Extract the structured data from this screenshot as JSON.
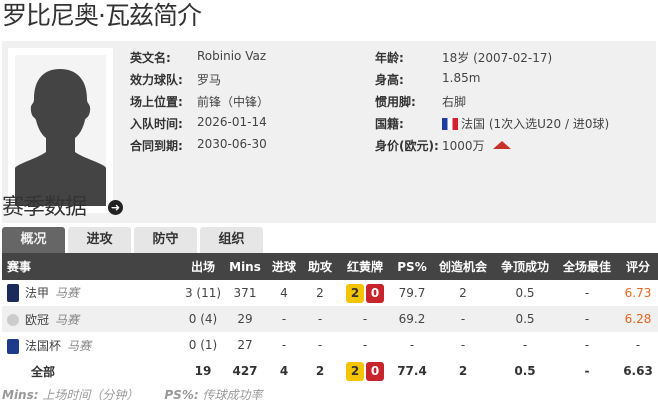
{
  "title": "罗比尼奥·瓦兹简介",
  "profile": {
    "left": [
      {
        "label": "英文名:",
        "value": "Robinio Vaz"
      },
      {
        "label": "效力球队:",
        "value": "罗马"
      },
      {
        "label": "场上位置:",
        "value": "前锋（中锋）"
      },
      {
        "label": "入队时间:",
        "value": "2026-01-14"
      },
      {
        "label": "合同到期:",
        "value": "2030-06-30"
      }
    ],
    "right": [
      {
        "label": "年龄:",
        "value": "18岁  (2007-02-17)"
      },
      {
        "label": "身高:",
        "value": "1.85m"
      },
      {
        "label": "惯用脚:",
        "value": "右脚"
      },
      {
        "label": "国籍:",
        "value": "法国 (1次入选U20 / 进0球)",
        "flag": "france-flag"
      },
      {
        "label": "身价(欧元):",
        "value": "1000万",
        "trend": "up",
        "trend_color": "#c8302a"
      }
    ]
  },
  "season": {
    "title": "赛季数据",
    "tabs": [
      "概况",
      "进攻",
      "防守",
      "组织"
    ],
    "active_tab": "概况",
    "columns": [
      "赛事",
      "出场",
      "Mins",
      "进球",
      "助攻",
      "红黄牌",
      "PS%",
      "创造机会",
      "争顶成功",
      "全场最佳",
      "评分"
    ],
    "rows": [
      {
        "comp": "法甲",
        "team": "马赛",
        "apps": "3 (11)",
        "mins": "371",
        "goals": "4",
        "assists": "2",
        "yellow": "2",
        "red": "0",
        "ps": "79.7",
        "chances": "2",
        "aerial": "0.5",
        "motm": "-",
        "rating": "6.73",
        "icon_color": "#1a2a5a"
      },
      {
        "comp": "欧冠",
        "team": "马赛",
        "apps": "0 (4)",
        "mins": "29",
        "goals": "-",
        "assists": "-",
        "cards": "-",
        "ps": "69.2",
        "chances": "-",
        "aerial": "0.5",
        "motm": "-",
        "rating": "6.28",
        "icon_color": "#bbbbbb"
      },
      {
        "comp": "法国杯",
        "team": "马赛",
        "apps": "0 (1)",
        "mins": "27",
        "goals": "-",
        "assists": "-",
        "cards": "-",
        "ps": "-",
        "chances": "-",
        "aerial": "-",
        "motm": "-",
        "rating": "-",
        "icon_color": "#1e3a8a"
      }
    ],
    "total": {
      "label": "全部",
      "apps": "19",
      "mins": "427",
      "goals": "4",
      "assists": "2",
      "yellow": "2",
      "red": "0",
      "ps": "77.4",
      "chances": "2",
      "aerial": "0.5",
      "motm": "-",
      "rating": "6.63"
    },
    "footnote": {
      "k1": "Mins:",
      "v1": "上场时间（分钟）",
      "k2": "PS%:",
      "v2": "传球成功率"
    }
  }
}
